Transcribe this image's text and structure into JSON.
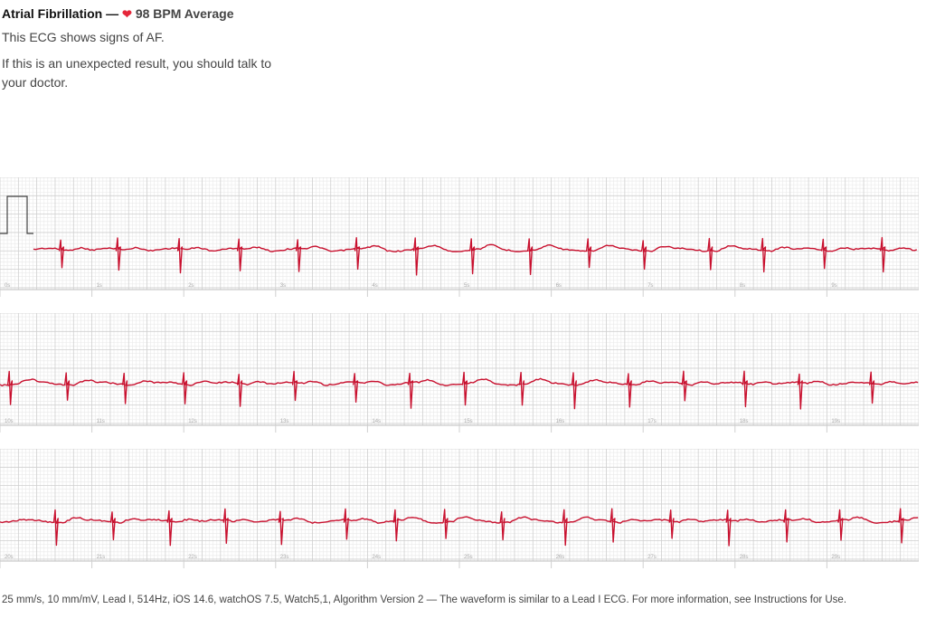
{
  "header": {
    "title": "Atrial Fibrillation — ",
    "heart": "❤",
    "bpm_label": "98 BPM Average",
    "summary": "This ECG shows signs of AF.",
    "advice": "If this is an unexpected result, you should talk to your doctor."
  },
  "footer": {
    "text": "25 mm/s, 10 mm/mV, Lead I, 514Hz, iOS 14.6, watchOS 7.5, Watch5,1, Algorithm Version 2 — The waveform is similar to a Lead I ECG. For more information, see Instructions for Use."
  },
  "chart_data": {
    "type": "line",
    "trace_color": "#c8102e",
    "grid": true,
    "strips": [
      {
        "time_labels": [
          "0s",
          "1s",
          "2s",
          "3s",
          "4s",
          "5s",
          "6s",
          "7s",
          "8s",
          "9s"
        ],
        "qrs_times_s": [
          0.66,
          1.28,
          1.95,
          2.6,
          3.24,
          3.88,
          4.52,
          5.13,
          5.76,
          6.4,
          7.0,
          7.72,
          8.3,
          8.96,
          9.6
        ]
      },
      {
        "time_labels": [
          "10s",
          "11s",
          "12s",
          "13s",
          "14s",
          "15s",
          "16s",
          "17s",
          "18s",
          "19s"
        ],
        "qrs_times_s": [
          10.1,
          10.72,
          11.35,
          12.0,
          12.6,
          13.2,
          13.86,
          14.46,
          15.05,
          15.67,
          16.24,
          16.84,
          17.44,
          18.1,
          18.7,
          19.48
        ]
      },
      {
        "time_labels": [
          "20s",
          "21s",
          "22s",
          "23s",
          "24s",
          "25s",
          "26s",
          "27s",
          "28s",
          "29s"
        ],
        "qrs_times_s": [
          20.6,
          21.22,
          21.84,
          22.45,
          23.05,
          23.76,
          24.3,
          24.84,
          25.46,
          26.14,
          26.66,
          27.3,
          27.92,
          28.55,
          29.14,
          29.8
        ]
      }
    ]
  }
}
